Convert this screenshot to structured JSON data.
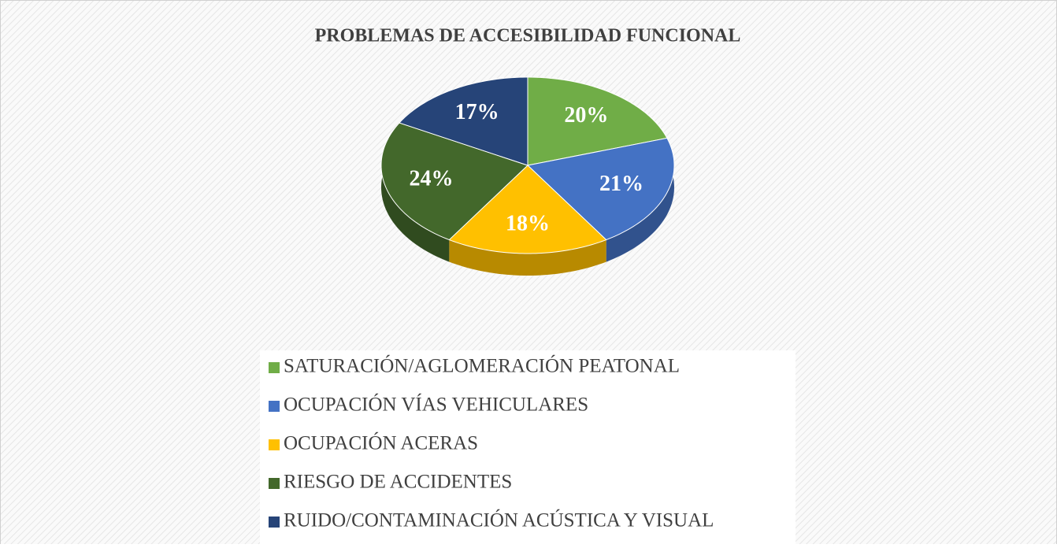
{
  "chart_data": {
    "type": "pie",
    "title": "PROBLEMAS DE ACCESIBILIDAD FUNCIONAL",
    "categories": [
      "SATURACIÓN/AGLOMERACIÓN PEATONAL",
      "OCUPACIÓN VÍAS VEHICULARES",
      "OCUPACIÓN ACERAS",
      "RIESGO DE ACCIDENTES",
      "RUIDO/CONTAMINACIÓN ACÚSTICA Y VISUAL"
    ],
    "values": [
      20,
      21,
      18,
      24,
      17
    ],
    "value_labels": [
      "20%",
      "21%",
      "18%",
      "24%",
      "17%"
    ],
    "colors": [
      "#70ad47",
      "#4472c4",
      "#ffc000",
      "#43682b",
      "#264478"
    ],
    "legend": "bottom"
  }
}
